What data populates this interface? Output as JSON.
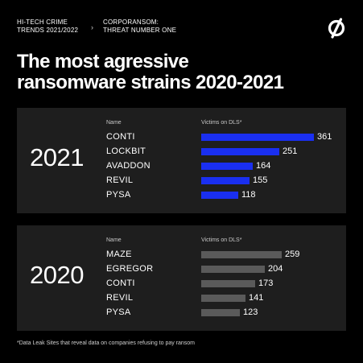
{
  "header": {
    "crumb_primary": "HI-TECH CRIME\nTRENDS 2021/2022",
    "crumb_separator": "›",
    "crumb_secondary": "CORPORANSOM:\nTHREAT NUMBER ONE",
    "logo_icon": "slashed-circle-logo-icon"
  },
  "title": "The most agressive\nransomware strains 2020-2021",
  "footnote": "*Data Leak Sites that reveal data on companies refusing to pay ransom",
  "chart_data": [
    {
      "type": "bar",
      "orientation": "horizontal",
      "group_label": "2021",
      "name_header": "Name",
      "value_header": "Victims on DLS*",
      "categories": [
        "CONTI",
        "LOCKBIT",
        "AVADDON",
        "REVIL",
        "PYSA"
      ],
      "values": [
        361,
        251,
        164,
        155,
        118
      ],
      "color": "#1a2ff0",
      "xlim": [
        0,
        361
      ]
    },
    {
      "type": "bar",
      "orientation": "horizontal",
      "group_label": "2020",
      "name_header": "Name",
      "value_header": "Victims on DLS*",
      "categories": [
        "MAZE",
        "EGREGOR",
        "CONTI",
        "REVIL",
        "PYSA"
      ],
      "values": [
        259,
        204,
        173,
        141,
        123
      ],
      "color": "#5a5a5a",
      "xlim": [
        0,
        361
      ]
    }
  ]
}
